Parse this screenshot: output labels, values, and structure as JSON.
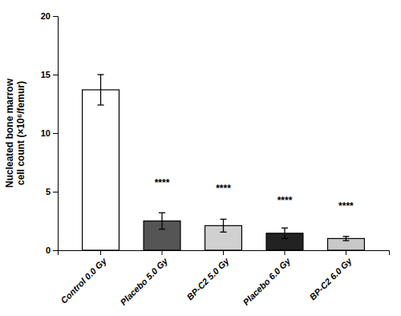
{
  "chart_data": {
    "type": "bar",
    "categories": [
      "Control 0.0 Gy",
      "Placebo 5.0 Gy",
      "BP-C2 5.0 Gy",
      "Placebo 6.0 Gy",
      "BP-C2 6.0 Gy"
    ],
    "values": [
      13.7,
      2.5,
      2.1,
      1.45,
      1.0
    ],
    "errors": [
      1.3,
      0.7,
      0.55,
      0.45,
      0.18
    ],
    "colors": [
      "#ffffff",
      "#555555",
      "#d0d0d0",
      "#222222",
      "#c8c8c8"
    ],
    "ylabel": "Nucleated bone marrow\ncell count (×10⁶/femur)",
    "annotations": [
      {
        "text": "****",
        "x": "Placebo 5.0 Gy",
        "y": 5.5
      },
      {
        "text": "****",
        "x": "BP-C2 5.0 Gy",
        "y": 5.0
      },
      {
        "text": "****",
        "x": "Placebo 6.0 Gy",
        "y": 4.0
      },
      {
        "text": "****",
        "x": "BP-C2 6.0 Gy",
        "y": 3.5
      }
    ],
    "ylim": [
      0,
      20
    ],
    "yticks": [
      0,
      5,
      10,
      15,
      20
    ],
    "grid": false
  }
}
